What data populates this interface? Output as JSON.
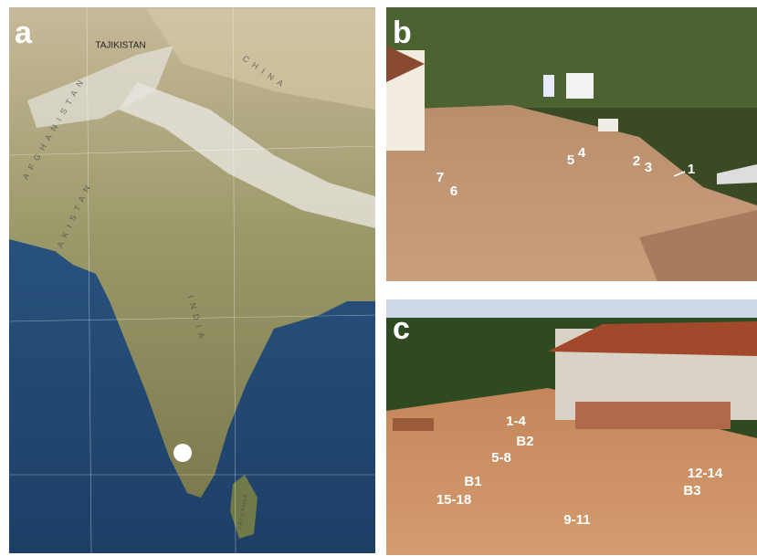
{
  "panels": [
    {
      "label": "a",
      "map_labels": [
        "TAJIKISTAN",
        "AFGHANISTAN",
        "PAKISTAN",
        "CHINA",
        "INDIA",
        "SRI LANKA"
      ]
    },
    {
      "label": "b",
      "annotations": [
        "7",
        "6",
        "5",
        "4",
        "2",
        "3",
        "1"
      ]
    },
    {
      "label": "c",
      "annotations": [
        "1-4",
        "B2",
        "5-8",
        "B1",
        "15-18",
        "12-14",
        "B3",
        "9-11"
      ]
    }
  ]
}
